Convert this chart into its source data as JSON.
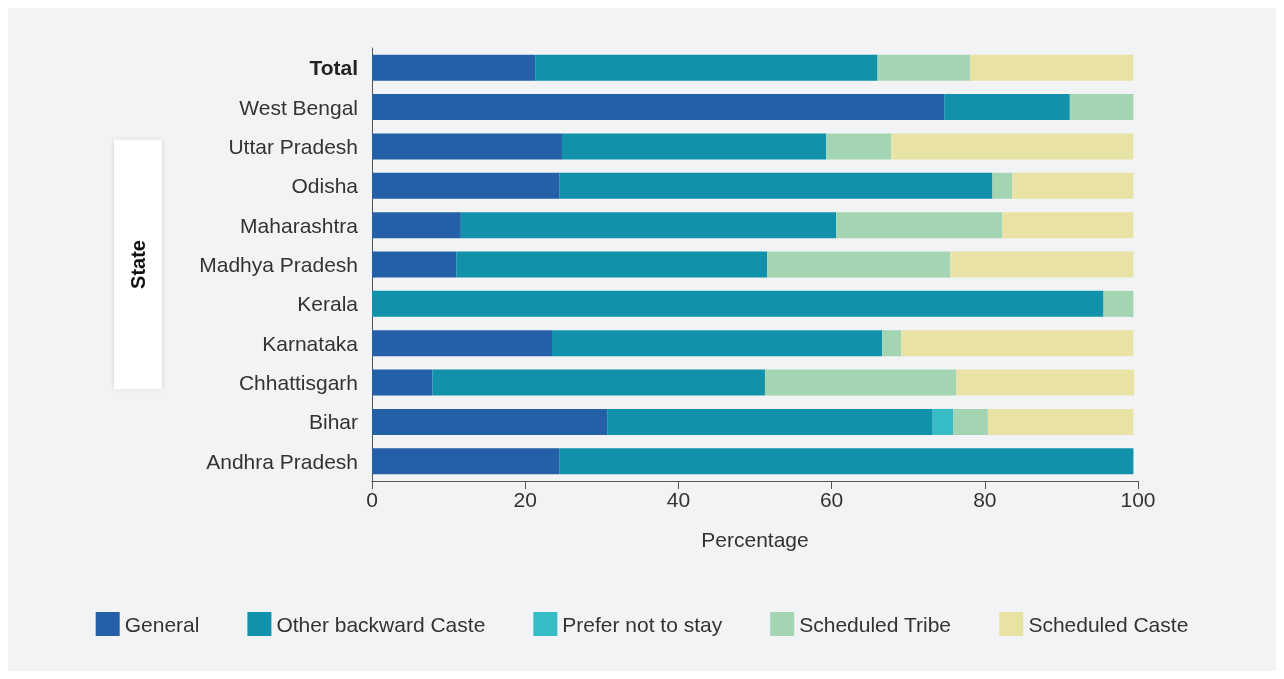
{
  "chart_data": {
    "type": "bar",
    "orientation": "horizontal",
    "stacked": true,
    "xlabel": "Percentage",
    "ylabel": "State",
    "categories": [
      "Total",
      "West Bengal",
      "Uttar Pradesh",
      "Odisha",
      "Maharashtra",
      "Madhya Pradesh",
      "Kerala",
      "Karnataka",
      "Chhattisgarh",
      "Bihar",
      "Andhra Pradesh"
    ],
    "series": [
      {
        "name": "General",
        "color": "#2460a7",
        "values": [
          21.3,
          74.7,
          24.8,
          24.5,
          11.6,
          11.0,
          0,
          23.5,
          7.9,
          30.7,
          24.5
        ]
      },
      {
        "name": "Other backward Caste",
        "color": "#1192aa",
        "values": [
          44.7,
          16.4,
          34.5,
          56.5,
          49.0,
          40.6,
          95.5,
          43.1,
          43.4,
          42.5,
          74.9
        ]
      },
      {
        "name": "Prefer not to stay",
        "color": "#36bcc4",
        "values": [
          0,
          0,
          0,
          0,
          0,
          0,
          0,
          0,
          0,
          2.7,
          0
        ]
      },
      {
        "name": "Scheduled Tribe",
        "color": "#a4d5b3",
        "values": [
          12.1,
          8.3,
          8.5,
          2.6,
          21.7,
          23.9,
          3.9,
          2.5,
          25.0,
          4.5,
          0
        ]
      },
      {
        "name": "Scheduled Caste",
        "color": "#e8e3a4",
        "values": [
          21.3,
          0,
          31.6,
          15.8,
          17.1,
          23.9,
          0,
          30.3,
          23.2,
          19.0,
          0
        ]
      }
    ],
    "xlim": [
      0,
      100
    ],
    "xticks": [
      0,
      20,
      40,
      60,
      80,
      100
    ],
    "grid": false,
    "legend": "bottom"
  }
}
